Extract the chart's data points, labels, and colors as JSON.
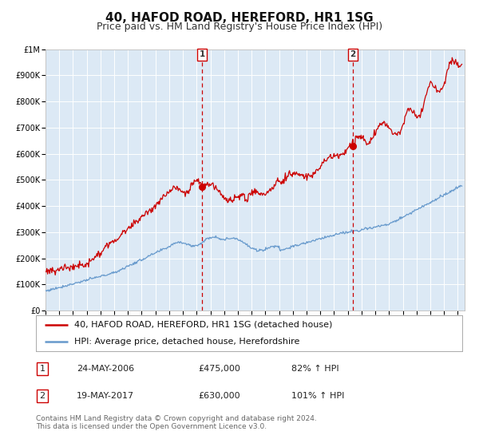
{
  "title": "40, HAFOD ROAD, HEREFORD, HR1 1SG",
  "subtitle": "Price paid vs. HM Land Registry's House Price Index (HPI)",
  "background_color": "#ffffff",
  "plot_bg_color": "#dce9f5",
  "grid_color": "#ffffff",
  "xmin": 1995.0,
  "xmax": 2025.5,
  "ymin": 0,
  "ymax": 1000000,
  "yticks": [
    0,
    100000,
    200000,
    300000,
    400000,
    500000,
    600000,
    700000,
    800000,
    900000,
    1000000
  ],
  "ytick_labels": [
    "£0",
    "£100K",
    "£200K",
    "£300K",
    "£400K",
    "£500K",
    "£600K",
    "£700K",
    "£800K",
    "£900K",
    "£1M"
  ],
  "xticks": [
    1995,
    1996,
    1997,
    1998,
    1999,
    2000,
    2001,
    2002,
    2003,
    2004,
    2005,
    2006,
    2007,
    2008,
    2009,
    2010,
    2011,
    2012,
    2013,
    2014,
    2015,
    2016,
    2017,
    2018,
    2019,
    2020,
    2021,
    2022,
    2023,
    2024,
    2025
  ],
  "red_line_color": "#cc0000",
  "blue_line_color": "#6699cc",
  "vline1_x": 2006.39,
  "vline2_x": 2017.38,
  "vline_color": "#cc0000",
  "dot1_x": 2006.39,
  "dot1_y": 475000,
  "dot2_x": 2017.38,
  "dot2_y": 630000,
  "dot_color": "#cc0000",
  "legend_label_red": "40, HAFOD ROAD, HEREFORD, HR1 1SG (detached house)",
  "legend_label_blue": "HPI: Average price, detached house, Herefordshire",
  "table_rows": [
    {
      "num": "1",
      "date": "24-MAY-2006",
      "price": "£475,000",
      "hpi": "82% ↑ HPI"
    },
    {
      "num": "2",
      "date": "19-MAY-2017",
      "price": "£630,000",
      "hpi": "101% ↑ HPI"
    }
  ],
  "footer": "Contains HM Land Registry data © Crown copyright and database right 2024.\nThis data is licensed under the Open Government Licence v3.0.",
  "title_fontsize": 11,
  "subtitle_fontsize": 9,
  "tick_fontsize": 7,
  "legend_fontsize": 8,
  "table_fontsize": 8,
  "footer_fontsize": 6.5
}
